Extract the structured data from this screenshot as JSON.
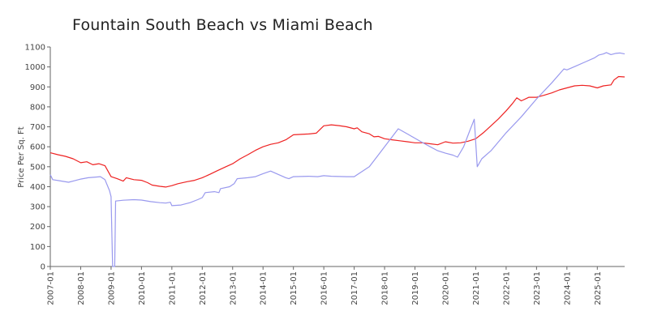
{
  "chart_data": {
    "type": "line",
    "title": "Fountain South Beach vs Miami Beach",
    "xlabel": "",
    "ylabel": "Price Per Sq. Ft",
    "ylim": [
      0,
      1100
    ],
    "yticks": [
      0,
      100,
      200,
      300,
      400,
      500,
      600,
      700,
      800,
      900,
      1000,
      1100
    ],
    "ytick_labels": [
      "0",
      "100",
      "200",
      "300",
      "400",
      "500",
      "600",
      "700",
      "800",
      "900",
      "1000",
      "1100"
    ],
    "xlim": [
      2007.0,
      2025.9
    ],
    "xtick_labels": [
      "2007-01",
      "2008-01",
      "2009-01",
      "2010-01",
      "2011-01",
      "2012-01",
      "2013-01",
      "2014-01",
      "2015-01",
      "2016-01",
      "2017-01",
      "2018-01",
      "2019-01",
      "2020-01",
      "2021-01",
      "2022-01",
      "2023-01",
      "2024-01",
      "2025-01"
    ],
    "grid": false,
    "legend": "none",
    "series": [
      {
        "color": "#ee2222",
        "points": [
          [
            2007.0,
            570
          ],
          [
            2007.25,
            560
          ],
          [
            2007.5,
            552
          ],
          [
            2007.75,
            540
          ],
          [
            2008.0,
            520
          ],
          [
            2008.2,
            525
          ],
          [
            2008.4,
            510
          ],
          [
            2008.6,
            515
          ],
          [
            2008.8,
            505
          ],
          [
            2009.0,
            450
          ],
          [
            2009.2,
            440
          ],
          [
            2009.4,
            428
          ],
          [
            2009.5,
            445
          ],
          [
            2009.75,
            435
          ],
          [
            2010.0,
            432
          ],
          [
            2010.2,
            420
          ],
          [
            2010.35,
            408
          ],
          [
            2010.6,
            402
          ],
          [
            2010.8,
            398
          ],
          [
            2011.0,
            405
          ],
          [
            2011.2,
            415
          ],
          [
            2011.5,
            425
          ],
          [
            2011.75,
            432
          ],
          [
            2012.0,
            445
          ],
          [
            2012.25,
            462
          ],
          [
            2012.5,
            480
          ],
          [
            2012.75,
            498
          ],
          [
            2013.0,
            515
          ],
          [
            2013.25,
            540
          ],
          [
            2013.5,
            560
          ],
          [
            2013.75,
            582
          ],
          [
            2014.0,
            600
          ],
          [
            2014.25,
            612
          ],
          [
            2014.5,
            620
          ],
          [
            2014.75,
            635
          ],
          [
            2015.0,
            660
          ],
          [
            2015.25,
            662
          ],
          [
            2015.5,
            664
          ],
          [
            2015.75,
            668
          ],
          [
            2016.0,
            705
          ],
          [
            2016.25,
            710
          ],
          [
            2016.5,
            706
          ],
          [
            2016.75,
            700
          ],
          [
            2017.0,
            690
          ],
          [
            2017.1,
            695
          ],
          [
            2017.25,
            675
          ],
          [
            2017.5,
            665
          ],
          [
            2017.65,
            650
          ],
          [
            2017.8,
            652
          ],
          [
            2018.0,
            640
          ],
          [
            2018.25,
            635
          ],
          [
            2018.5,
            630
          ],
          [
            2018.75,
            625
          ],
          [
            2019.0,
            620
          ],
          [
            2019.25,
            620
          ],
          [
            2019.5,
            615
          ],
          [
            2019.75,
            610
          ],
          [
            2020.0,
            625
          ],
          [
            2020.25,
            618
          ],
          [
            2020.5,
            620
          ],
          [
            2020.75,
            628
          ],
          [
            2021.0,
            640
          ],
          [
            2021.25,
            670
          ],
          [
            2021.5,
            705
          ],
          [
            2021.75,
            740
          ],
          [
            2022.0,
            780
          ],
          [
            2022.2,
            815
          ],
          [
            2022.35,
            845
          ],
          [
            2022.5,
            830
          ],
          [
            2022.75,
            848
          ],
          [
            2023.0,
            848
          ],
          [
            2023.25,
            858
          ],
          [
            2023.5,
            870
          ],
          [
            2023.75,
            885
          ],
          [
            2024.0,
            895
          ],
          [
            2024.25,
            905
          ],
          [
            2024.5,
            908
          ],
          [
            2024.75,
            905
          ],
          [
            2025.0,
            895
          ],
          [
            2025.2,
            905
          ],
          [
            2025.45,
            910
          ],
          [
            2025.55,
            935
          ],
          [
            2025.7,
            952
          ],
          [
            2025.9,
            950
          ]
        ]
      },
      {
        "color": "#9999ee",
        "points": [
          [
            2007.0,
            460
          ],
          [
            2007.08,
            435
          ],
          [
            2007.3,
            430
          ],
          [
            2007.6,
            422
          ],
          [
            2007.8,
            430
          ],
          [
            2008.0,
            438
          ],
          [
            2008.25,
            445
          ],
          [
            2008.5,
            448
          ],
          [
            2008.65,
            450
          ],
          [
            2008.8,
            435
          ],
          [
            2008.95,
            380
          ],
          [
            2009.0,
            350
          ],
          [
            2009.05,
            0
          ],
          [
            2009.12,
            0
          ],
          [
            2009.15,
            328
          ],
          [
            2009.4,
            332
          ],
          [
            2009.75,
            335
          ],
          [
            2010.0,
            333
          ],
          [
            2010.3,
            325
          ],
          [
            2010.6,
            320
          ],
          [
            2010.8,
            318
          ],
          [
            2010.95,
            322
          ],
          [
            2011.0,
            305
          ],
          [
            2011.3,
            308
          ],
          [
            2011.6,
            320
          ],
          [
            2011.85,
            335
          ],
          [
            2012.0,
            345
          ],
          [
            2012.1,
            370
          ],
          [
            2012.4,
            375
          ],
          [
            2012.55,
            370
          ],
          [
            2012.6,
            390
          ],
          [
            2012.9,
            400
          ],
          [
            2013.05,
            415
          ],
          [
            2013.15,
            440
          ],
          [
            2013.5,
            445
          ],
          [
            2013.75,
            450
          ],
          [
            2014.0,
            465
          ],
          [
            2014.25,
            478
          ],
          [
            2014.4,
            468
          ],
          [
            2014.75,
            445
          ],
          [
            2014.85,
            440
          ],
          [
            2015.0,
            450
          ],
          [
            2015.5,
            452
          ],
          [
            2015.8,
            450
          ],
          [
            2016.0,
            455
          ],
          [
            2016.25,
            452
          ],
          [
            2016.75,
            450
          ],
          [
            2017.0,
            450
          ],
          [
            2017.5,
            500
          ],
          [
            2017.8,
            560
          ],
          [
            2018.2,
            640
          ],
          [
            2018.45,
            690
          ],
          [
            2018.8,
            660
          ],
          [
            2019.2,
            625
          ],
          [
            2019.5,
            600
          ],
          [
            2019.75,
            580
          ],
          [
            2020.0,
            568
          ],
          [
            2020.25,
            558
          ],
          [
            2020.4,
            548
          ],
          [
            2020.6,
            600
          ],
          [
            2020.8,
            680
          ],
          [
            2020.95,
            738
          ],
          [
            2021.05,
            500
          ],
          [
            2021.2,
            540
          ],
          [
            2021.5,
            580
          ],
          [
            2022.0,
            670
          ],
          [
            2022.5,
            750
          ],
          [
            2023.0,
            840
          ],
          [
            2023.5,
            920
          ],
          [
            2023.9,
            990
          ],
          [
            2024.0,
            985
          ],
          [
            2024.3,
            1005
          ],
          [
            2024.6,
            1025
          ],
          [
            2024.9,
            1045
          ],
          [
            2025.05,
            1060
          ],
          [
            2025.2,
            1065
          ],
          [
            2025.3,
            1072
          ],
          [
            2025.45,
            1062
          ],
          [
            2025.6,
            1068
          ],
          [
            2025.75,
            1070
          ],
          [
            2025.9,
            1065
          ]
        ]
      }
    ]
  }
}
